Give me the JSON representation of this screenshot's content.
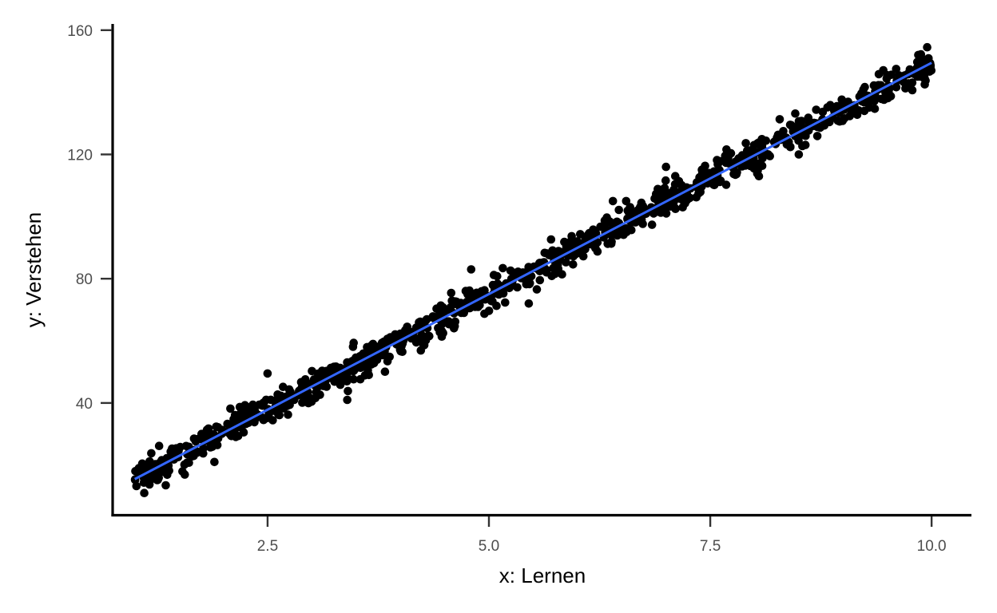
{
  "chart_data": {
    "type": "scatter",
    "title": "",
    "xlabel": "x: Lernen",
    "ylabel": "y: Verstehen",
    "xlim": [
      0.75,
      10.45
    ],
    "ylim": [
      4,
      162
    ],
    "x_ticks": [
      2.5,
      5.0,
      7.5,
      10.0
    ],
    "x_tick_labels": [
      "2.5",
      "5.0",
      "7.5",
      "10.0"
    ],
    "y_ticks": [
      40,
      80,
      120,
      160
    ],
    "y_tick_labels": [
      "40",
      "80",
      "120",
      "160"
    ],
    "grid": false,
    "legend": "none",
    "point_count": 1000,
    "x_range": [
      1.0,
      10.0
    ],
    "fit_line": {
      "method": "linear",
      "x": [
        1.0,
        10.0
      ],
      "y": [
        15.5,
        149.5
      ],
      "color": "#3366FF"
    },
    "outliers": [
      {
        "x": 2.5,
        "y": 49.5
      },
      {
        "x": 2.8,
        "y": 41.0
      },
      {
        "x": 3.35,
        "y": 49.5
      },
      {
        "x": 3.4,
        "y": 41.0
      },
      {
        "x": 4.8,
        "y": 83.0
      },
      {
        "x": 5.45,
        "y": 72.0
      },
      {
        "x": 6.4,
        "y": 105.0
      },
      {
        "x": 6.55,
        "y": 105.0
      },
      {
        "x": 7.0,
        "y": 116.0
      },
      {
        "x": 8.05,
        "y": 113.0
      },
      {
        "x": 8.5,
        "y": 120.0
      },
      {
        "x": 1.35,
        "y": 13.5
      },
      {
        "x": 1.9,
        "y": 21.0
      },
      {
        "x": 8.3,
        "y": 125.0
      },
      {
        "x": 9.6,
        "y": 147.5
      },
      {
        "x": 9.85,
        "y": 152.0
      }
    ]
  },
  "colors": {
    "points": "#000000",
    "fit_line": "#3366FF",
    "axis": "#000000",
    "tick_text": "#4d4d4d"
  }
}
